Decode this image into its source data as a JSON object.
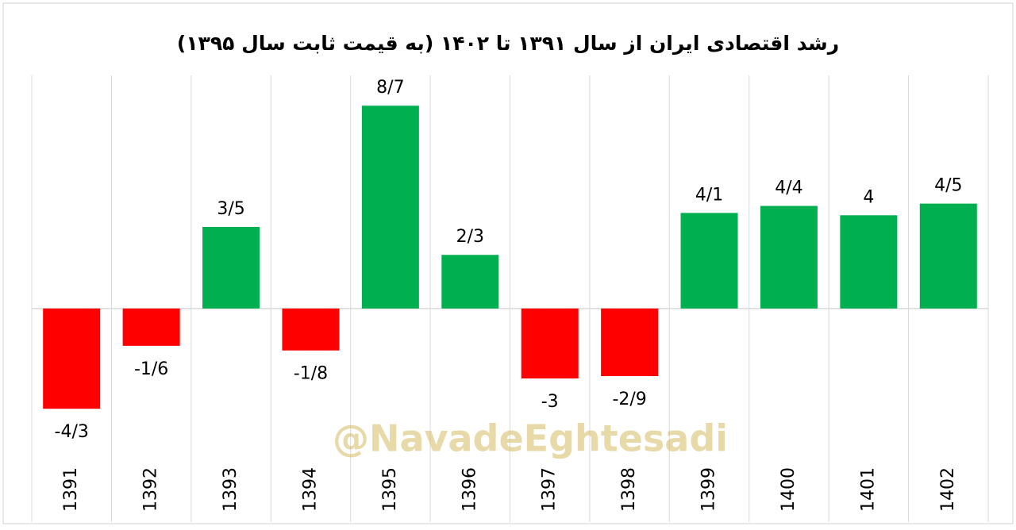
{
  "chart_data": {
    "type": "bar",
    "title": "رشد اقتصادی ایران از سال ۱۳۹۱ تا ۱۴۰۲ (به قیمت ثابت سال ۱۳۹۵)",
    "watermark": "@NavadeEghtesadi",
    "categories": [
      "1391",
      "1392",
      "1393",
      "1394",
      "1395",
      "1396",
      "1397",
      "1398",
      "1399",
      "1400",
      "1401",
      "1402"
    ],
    "values": [
      -4.3,
      -1.6,
      3.5,
      -1.8,
      8.7,
      2.3,
      -3,
      -2.9,
      4.1,
      4.4,
      4,
      4.5
    ],
    "value_labels": [
      "-4/3",
      "-1/6",
      "3/5",
      "-1/8",
      "8/7",
      "2/3",
      "-3",
      "-2/9",
      "4/1",
      "4/4",
      "4",
      "4/5"
    ],
    "colors": [
      "#ff0000",
      "#ff0000",
      "#00b050",
      "#ff0000",
      "#00b050",
      "#00b050",
      "#ff0000",
      "#ff0000",
      "#00b050",
      "#00b050",
      "#00b050",
      "#00b050"
    ],
    "ylim": [
      -6.2,
      10
    ]
  }
}
